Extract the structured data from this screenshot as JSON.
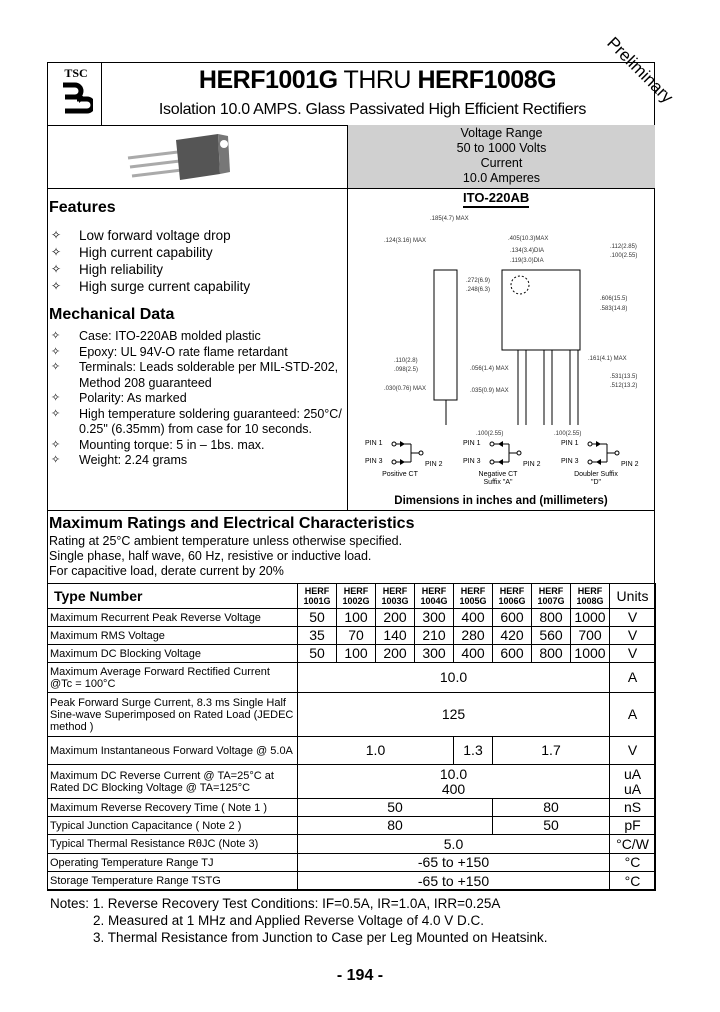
{
  "header": {
    "logo_text": "TSC",
    "title_part1": "HERF1001G",
    "title_mid": "THRU",
    "title_part2": "HERF1008G",
    "subtitle": "Isolation 10.0 AMPS. Glass Passivated High Efficient Rectifiers",
    "stamp": "Preliminary"
  },
  "ratings_box": {
    "line1": "Voltage Range",
    "line2": "50 to 1000 Volts",
    "line3": "Current",
    "line4": "10.0 Amperes"
  },
  "package": {
    "name": "ITO-220AB",
    "caption": "Dimensions in inches and (millimeters)",
    "dims": [
      ".185(4.7) MAX",
      ".124(3.16) MAX",
      ".405(10.3)MAX",
      ".134(3.4)DIA",
      ".119(3.0)DIA",
      ".112(2.85)",
      ".100(2.55)",
      ".272(6.9)",
      ".248(6.3)",
      ".606(15.5)",
      ".583(14.8)",
      ".110(2.8)",
      ".098(2.5)",
      ".030(0.76) MAX",
      ".056(1.4) MAX",
      ".035(0.9) MAX",
      ".161(4.1) MAX",
      ".531(13.5)",
      ".512(13.2)",
      ".100(2.55)",
      ".100(2.55)"
    ],
    "pins": [
      {
        "p1": "PIN 1",
        "p3": "PIN 3",
        "p2": "PIN 2",
        "label": "Positive CT"
      },
      {
        "p1": "PIN 1",
        "p3": "PIN 3",
        "p2": "PIN 2",
        "label": "Negative CT Suffix \"A\""
      },
      {
        "p1": "PIN 1",
        "p3": "PIN 3",
        "p2": "PIN 2",
        "label": "Doubler Suffix \"D\""
      }
    ]
  },
  "features": {
    "heading": "Features",
    "items": [
      "Low forward voltage drop",
      "High current capability",
      "High reliability",
      "High surge current capability"
    ]
  },
  "mechanical": {
    "heading": "Mechanical Data",
    "items": [
      "Case: ITO-220AB molded plastic",
      "Epoxy: UL 94V-O rate flame retardant",
      "Terminals: Leads solderable per MIL-STD-202, Method 208 guaranteed",
      "Polarity: As marked",
      "High temperature soldering guaranteed: 250°C/ 0.25\" (6.35mm) from case for 10 seconds.",
      "Mounting torque: 5 in – 1bs. max.",
      "Weight: 2.24 grams"
    ]
  },
  "ratings": {
    "heading": "Maximum Ratings and Electrical Characteristics",
    "lines": [
      "Rating at 25°C ambient temperature unless otherwise specified.",
      "Single phase, half wave, 60 Hz, resistive or inductive load.",
      "For capacitive load, derate current by 20%"
    ]
  },
  "table": {
    "type_header": "Type Number",
    "units_header": "Units",
    "parts": [
      [
        "HERF",
        "1001G"
      ],
      [
        "HERF",
        "1002G"
      ],
      [
        "HERF",
        "1003G"
      ],
      [
        "HERF",
        "1004G"
      ],
      [
        "HERF",
        "1005G"
      ],
      [
        "HERF",
        "1006G"
      ],
      [
        "HERF",
        "1007G"
      ],
      [
        "HERF",
        "1008G"
      ]
    ],
    "rows": [
      {
        "label": "Maximum Recurrent Peak Reverse Voltage",
        "values": [
          "50",
          "100",
          "200",
          "300",
          "400",
          "600",
          "800",
          "1000"
        ],
        "unit": "V"
      },
      {
        "label": "Maximum RMS Voltage",
        "values": [
          "35",
          "70",
          "140",
          "210",
          "280",
          "420",
          "560",
          "700"
        ],
        "unit": "V"
      },
      {
        "label": "Maximum DC Blocking Voltage",
        "values": [
          "50",
          "100",
          "200",
          "300",
          "400",
          "600",
          "800",
          "1000"
        ],
        "unit": "V"
      },
      {
        "label": "Maximum Average Forward Rectified Current @Tc = 100°C",
        "value": "10.0",
        "unit": "A"
      },
      {
        "label": "Peak Forward Surge Current, 8.3 ms Single Half Sine-wave Superimposed on Rated Load (JEDEC method )",
        "value": "125",
        "unit": "A"
      },
      {
        "label": "Maximum Instantaneous Forward Voltage @ 5.0A",
        "values": [
          "1.0",
          "1.3",
          "1.7"
        ],
        "unit": "V"
      },
      {
        "label": "Maximum DC Reverse Current @ TA=25°C at Rated DC Blocking Voltage @ TA=125°C",
        "value": "10.0",
        "value2": "400",
        "unit": "uA",
        "unit2": "uA"
      },
      {
        "label": "Maximum Reverse Recovery Time ( Note 1 )",
        "values": [
          "50",
          "80"
        ],
        "unit": "nS"
      },
      {
        "label": "Typical Junction Capacitance  ( Note 2 )",
        "values": [
          "80",
          "50"
        ],
        "unit": "pF"
      },
      {
        "label": "Typical Thermal Resistance RθJC (Note 3)",
        "value": "5.0",
        "unit": "°C/W"
      },
      {
        "label": "Operating Temperature Range TJ",
        "value": "-65 to +150",
        "unit": "°C"
      },
      {
        "label": "Storage Temperature Range TSTG",
        "value": "-65 to +150",
        "unit": "°C"
      }
    ]
  },
  "notes": [
    "Notes: 1. Reverse Recovery Test Conditions: IF=0.5A, IR=1.0A, IRR=0.25A",
    "2. Measured at 1 MHz and Applied Reverse Voltage of 4.0 V D.C.",
    "3. Thermal Resistance from Junction to Case per Leg Mounted on Heatsink."
  ],
  "page_number": "- 194 -"
}
